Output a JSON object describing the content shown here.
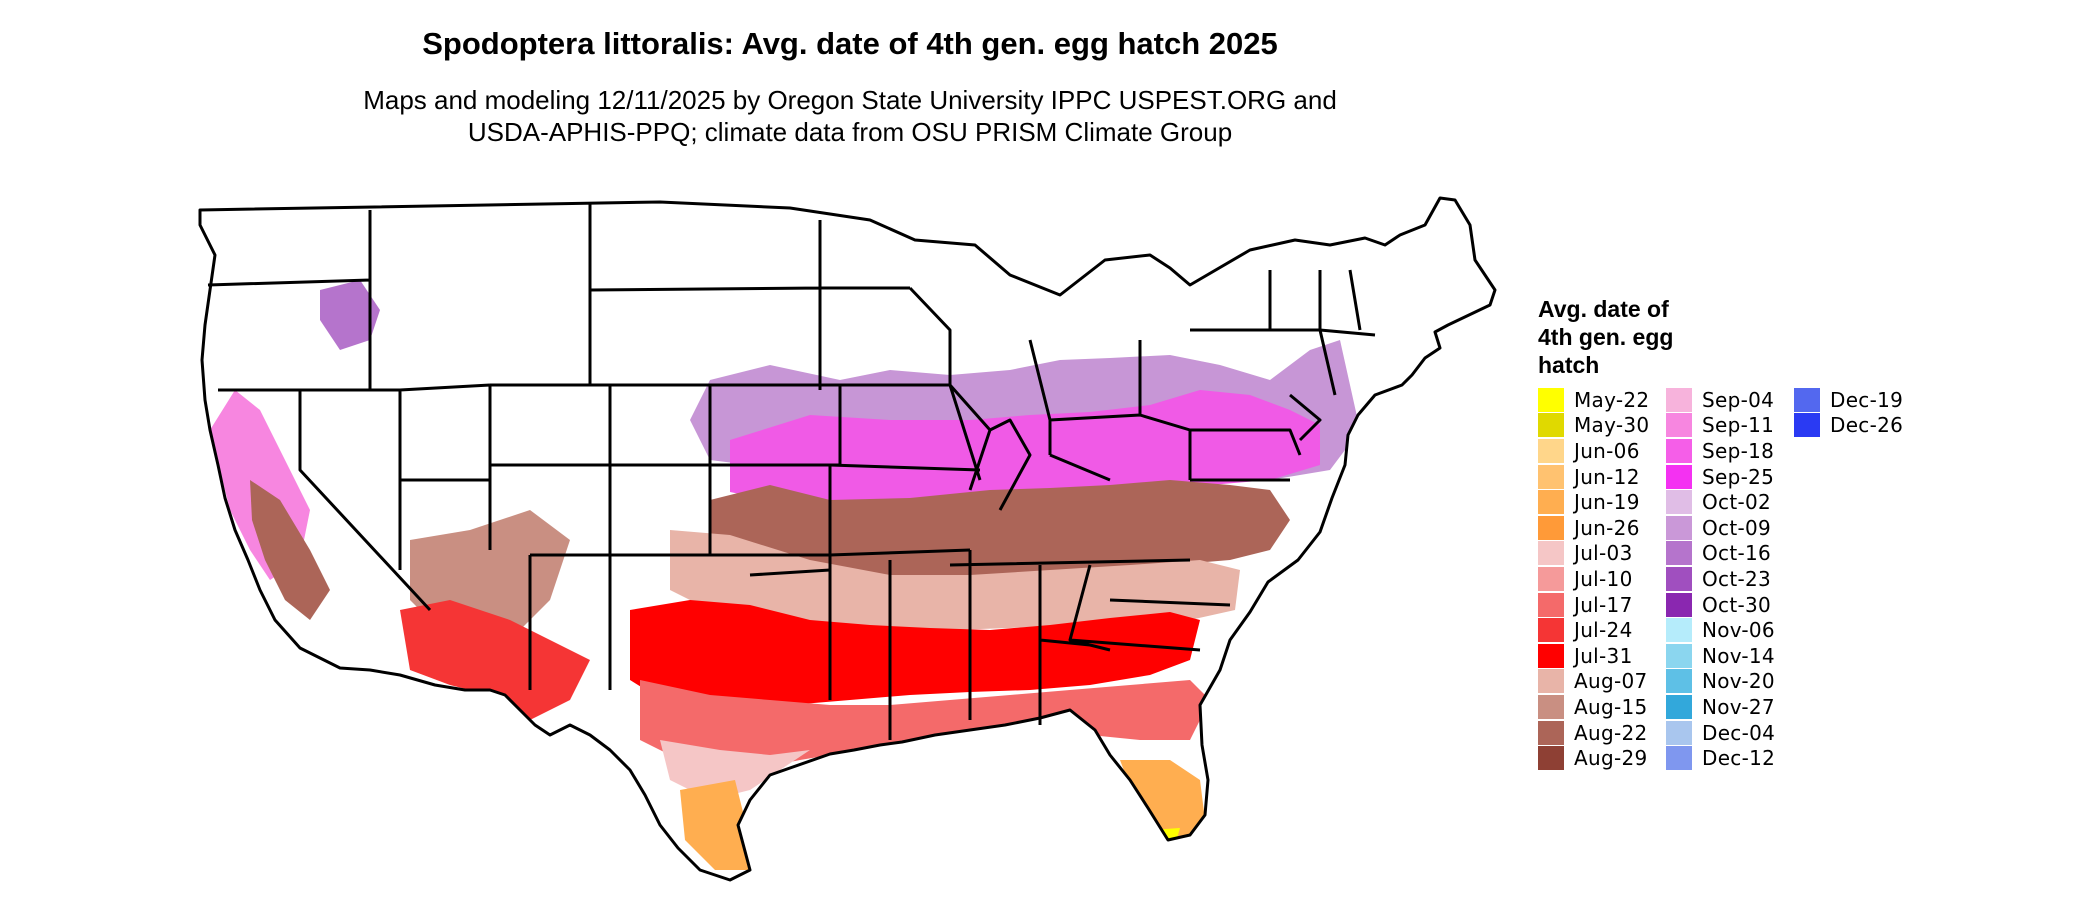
{
  "title": "Spodoptera littoralis: Avg. date of 4th gen. egg hatch 2025",
  "subtitle_lines": [
    "Maps and modeling 12/11/2025 by Oregon State University IPPC USPEST.ORG and",
    "USDA-APHIS-PPQ; climate data from OSU PRISM Climate Group"
  ],
  "legend": {
    "title_lines": [
      "Avg. date of",
      "4th gen. egg",
      "hatch"
    ],
    "columns": [
      [
        {
          "label": "May-22",
          "color": "#ffff00"
        },
        {
          "label": "May-30",
          "color": "#e0d900"
        },
        {
          "label": "Jun-06",
          "color": "#ffd68a"
        },
        {
          "label": "Jun-12",
          "color": "#ffc270"
        },
        {
          "label": "Jun-19",
          "color": "#ffae50"
        },
        {
          "label": "Jun-26",
          "color": "#ff9a38"
        },
        {
          "label": "Jul-03",
          "color": "#f5c6c6"
        },
        {
          "label": "Jul-10",
          "color": "#f59a9a"
        },
        {
          "label": "Jul-17",
          "color": "#f46a6a"
        },
        {
          "label": "Jul-24",
          "color": "#f53535"
        },
        {
          "label": "Jul-31",
          "color": "#ff0000"
        },
        {
          "label": "Aug-07",
          "color": "#e8b4a8"
        },
        {
          "label": "Aug-15",
          "color": "#c98f82"
        },
        {
          "label": "Aug-22",
          "color": "#ac6558"
        },
        {
          "label": "Aug-29",
          "color": "#8e4034"
        }
      ],
      [
        {
          "label": "Sep-04",
          "color": "#f7b3dc"
        },
        {
          "label": "Sep-11",
          "color": "#f786e0"
        },
        {
          "label": "Sep-18",
          "color": "#f55ee8"
        },
        {
          "label": "Sep-25",
          "color": "#f431f2"
        },
        {
          "label": "Oct-02",
          "color": "#e0bde6"
        },
        {
          "label": "Oct-09",
          "color": "#ca98d8"
        },
        {
          "label": "Oct-16",
          "color": "#b574cc"
        },
        {
          "label": "Oct-23",
          "color": "#a04fbf"
        },
        {
          "label": "Oct-30",
          "color": "#8a27b0"
        },
        {
          "label": "Nov-06",
          "color": "#b5ecfb"
        },
        {
          "label": "Nov-14",
          "color": "#8bd6ef"
        },
        {
          "label": "Nov-20",
          "color": "#5ec0e6"
        },
        {
          "label": "Nov-27",
          "color": "#32a8db"
        },
        {
          "label": "Dec-04",
          "color": "#a9c6ee"
        },
        {
          "label": "Dec-12",
          "color": "#7f97ef"
        }
      ],
      [
        {
          "label": "Dec-19",
          "color": "#5368ef"
        },
        {
          "label": "Dec-26",
          "color": "#2a3af3"
        }
      ]
    ]
  },
  "map": {
    "region": "contiguous-united-states",
    "state_border_color": "#000000",
    "no_data_color": "#ffffff"
  }
}
